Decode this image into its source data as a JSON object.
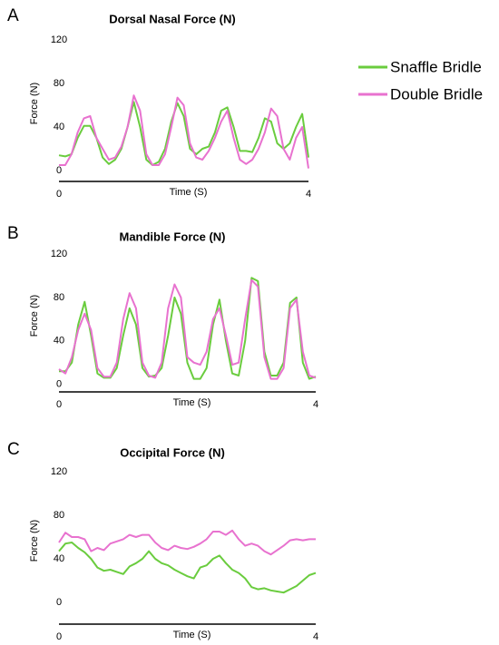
{
  "chart_data": [
    {
      "type": "line",
      "label": "A",
      "title": "Dorsal Nasal Force (N)",
      "xlabel": "Time (S)",
      "ylabel": "Force (N)",
      "x": [
        0,
        0.1,
        0.2,
        0.3,
        0.4,
        0.5,
        0.6,
        0.7,
        0.8,
        0.9,
        1,
        1.1,
        1.2,
        1.3,
        1.4,
        1.5,
        1.6,
        1.7,
        1.8,
        1.9,
        2,
        2.1,
        2.2,
        2.3,
        2.4,
        2.5,
        2.6,
        2.7,
        2.8,
        2.9,
        3,
        3.1,
        3.2,
        3.3,
        3.4,
        3.5,
        3.6,
        3.7,
        3.8,
        3.9,
        4
      ],
      "xlim": [
        0,
        4
      ],
      "xticks": [
        0,
        4
      ],
      "ylim": [
        -10,
        120
      ],
      "yticks": [
        0,
        40,
        80,
        120
      ],
      "series": [
        {
          "name": "Snaffle Bridle",
          "color": "#6acc3e",
          "values": [
            14,
            13,
            15,
            30,
            41,
            41,
            30,
            12,
            6,
            10,
            20,
            40,
            63,
            40,
            10,
            5,
            8,
            20,
            45,
            62,
            50,
            20,
            15,
            20,
            22,
            35,
            55,
            58,
            40,
            18,
            18,
            17,
            30,
            48,
            45,
            25,
            20,
            25,
            40,
            52,
            12
          ]
        },
        {
          "name": "Double Bridle",
          "color": "#e872cf",
          "values": [
            5,
            5,
            15,
            35,
            48,
            50,
            30,
            20,
            10,
            12,
            22,
            40,
            69,
            55,
            15,
            5,
            5,
            15,
            40,
            67,
            60,
            25,
            12,
            10,
            18,
            30,
            45,
            55,
            30,
            10,
            6,
            10,
            20,
            35,
            57,
            50,
            20,
            10,
            30,
            40,
            2
          ]
        }
      ]
    },
    {
      "type": "line",
      "label": "B",
      "title": "Mandible Force (N)",
      "xlabel": "Time (S)",
      "ylabel": "Force (N)",
      "x": [
        0,
        0.1,
        0.2,
        0.3,
        0.4,
        0.5,
        0.6,
        0.7,
        0.8,
        0.9,
        1,
        1.1,
        1.2,
        1.3,
        1.4,
        1.5,
        1.6,
        1.7,
        1.8,
        1.9,
        2,
        2.1,
        2.2,
        2.3,
        2.4,
        2.5,
        2.6,
        2.7,
        2.8,
        2.9,
        3,
        3.1,
        3.2,
        3.3,
        3.4,
        3.5,
        3.6,
        3.7,
        3.8,
        3.9,
        4
      ],
      "xlim": [
        0,
        4
      ],
      "xticks": [
        0,
        4
      ],
      "ylim": [
        -7,
        120
      ],
      "yticks": [
        0,
        40,
        80,
        120
      ],
      "series": [
        {
          "color": "#6acc3e",
          "values": [
            12,
            12,
            20,
            55,
            76,
            45,
            10,
            6,
            6,
            15,
            45,
            70,
            55,
            15,
            7,
            8,
            15,
            45,
            80,
            65,
            20,
            5,
            5,
            15,
            55,
            78,
            40,
            10,
            8,
            40,
            98,
            95,
            30,
            8,
            8,
            20,
            75,
            80,
            20,
            5,
            7
          ]
        },
        {
          "color": "#e872cf",
          "values": [
            14,
            10,
            25,
            50,
            65,
            50,
            15,
            7,
            7,
            20,
            60,
            84,
            70,
            20,
            8,
            6,
            20,
            70,
            92,
            80,
            25,
            20,
            18,
            30,
            60,
            70,
            45,
            18,
            20,
            60,
            96,
            90,
            25,
            5,
            5,
            15,
            70,
            78,
            30,
            8,
            6
          ]
        }
      ]
    },
    {
      "type": "line",
      "label": "C",
      "title": "Occipital Force (N)",
      "xlabel": "Time (S)",
      "ylabel": "Force (N)",
      "x": [
        0,
        0.1,
        0.2,
        0.3,
        0.4,
        0.5,
        0.6,
        0.7,
        0.8,
        0.9,
        1,
        1.1,
        1.2,
        1.3,
        1.4,
        1.5,
        1.6,
        1.7,
        1.8,
        1.9,
        2,
        2.1,
        2.2,
        2.3,
        2.4,
        2.5,
        2.6,
        2.7,
        2.8,
        2.9,
        3,
        3.1,
        3.2,
        3.3,
        3.4,
        3.5,
        3.6,
        3.7,
        3.8,
        3.9,
        4
      ],
      "xlim": [
        0,
        4
      ],
      "xticks": [
        0,
        4
      ],
      "ylim": [
        -20,
        120
      ],
      "yticks": [
        0,
        40,
        80,
        120
      ],
      "series": [
        {
          "color": "#6acc3e",
          "values": [
            47,
            54,
            55,
            50,
            46,
            40,
            32,
            29,
            30,
            28,
            26,
            33,
            36,
            40,
            47,
            40,
            36,
            34,
            30,
            27,
            24,
            22,
            32,
            34,
            40,
            43,
            36,
            30,
            27,
            22,
            14,
            12,
            13,
            11,
            10,
            9,
            12,
            15,
            20,
            25,
            27
          ]
        },
        {
          "color": "#e872cf",
          "values": [
            55,
            64,
            60,
            60,
            58,
            47,
            50,
            48,
            54,
            56,
            58,
            62,
            60,
            62,
            62,
            55,
            50,
            48,
            52,
            50,
            49,
            51,
            54,
            58,
            65,
            65,
            62,
            66,
            58,
            52,
            54,
            52,
            47,
            44,
            48,
            52,
            57,
            58,
            57,
            58,
            58
          ]
        }
      ]
    }
  ]
}
